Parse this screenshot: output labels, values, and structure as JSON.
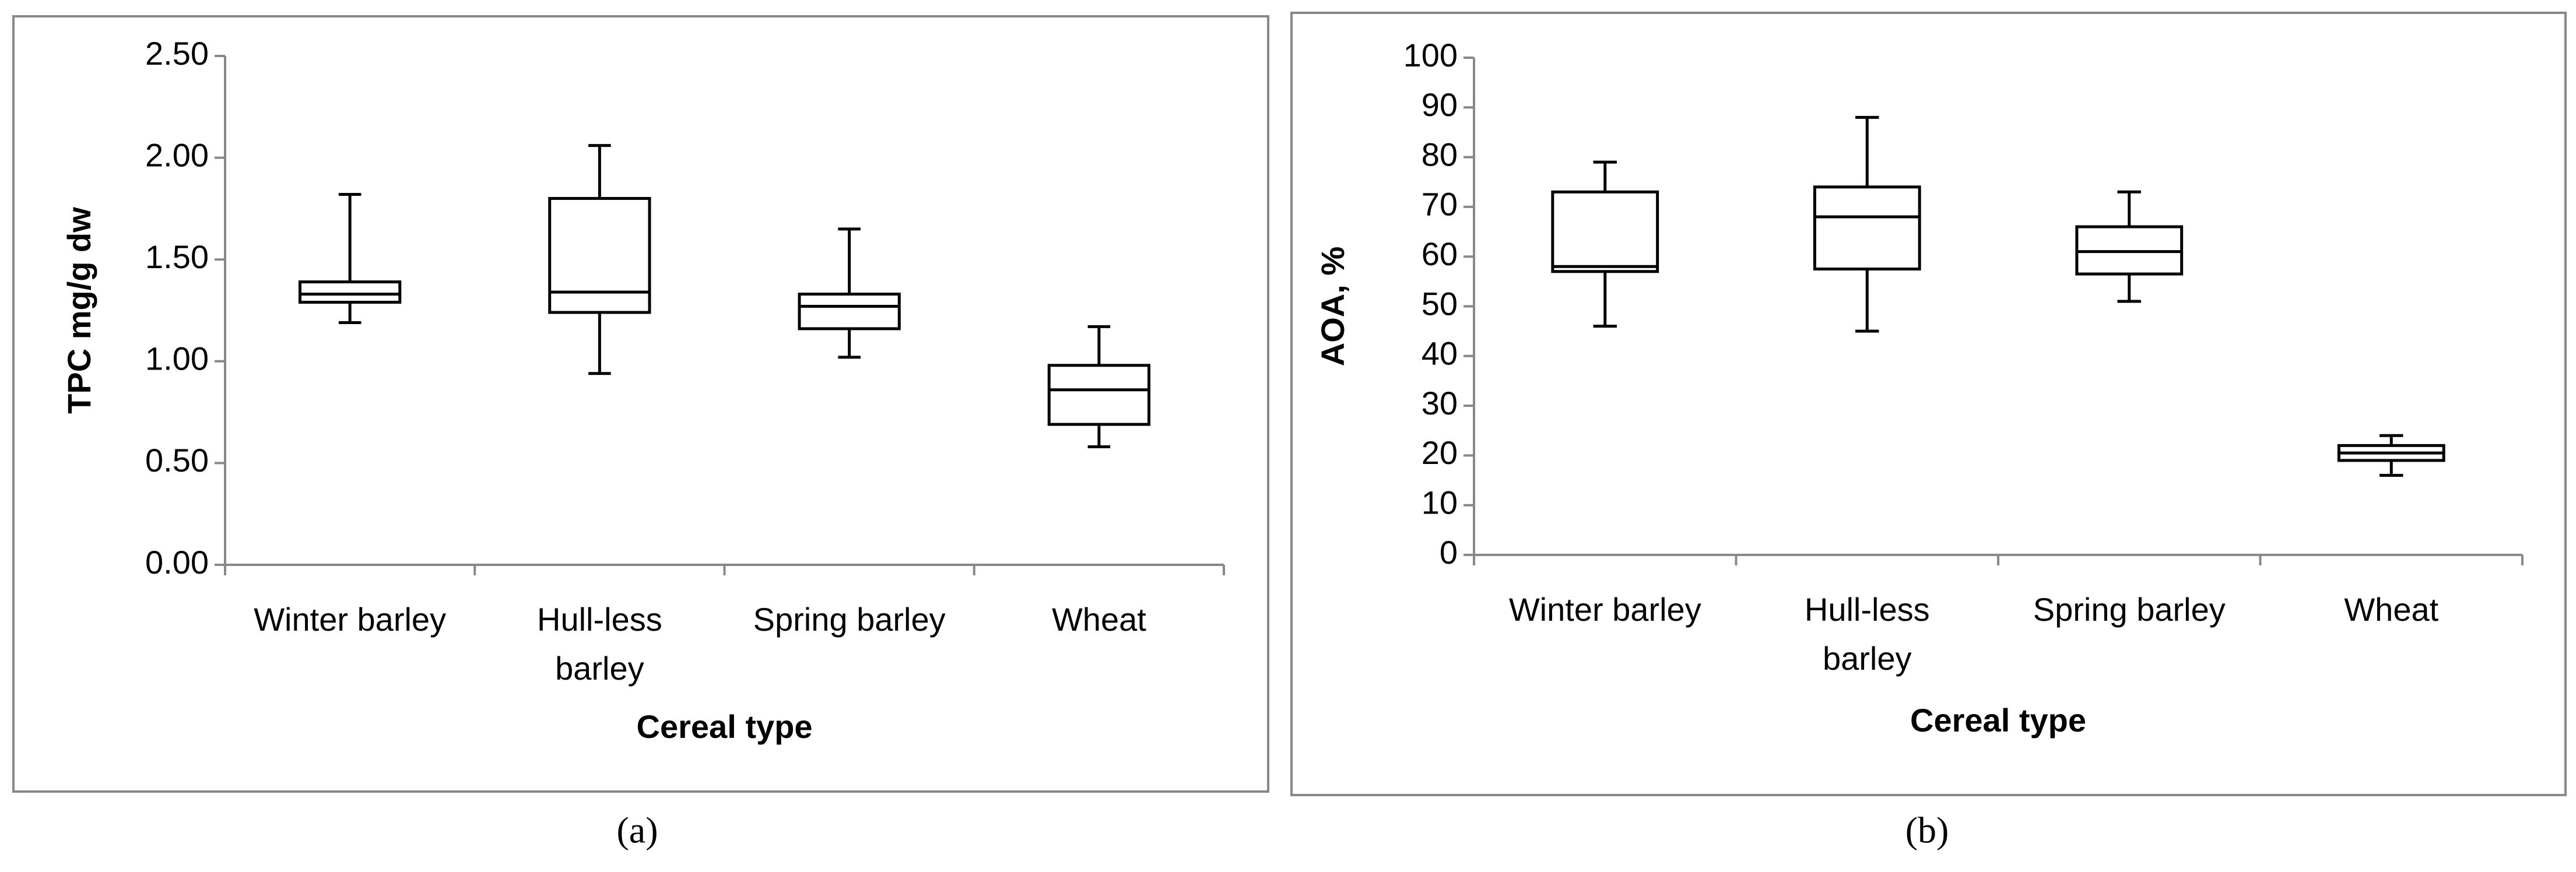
{
  "chart_data": [
    {
      "type": "box",
      "y_label": "TPC mg/g dw",
      "x_label": "Cereal type",
      "caption": "(a)",
      "categories": [
        "Winter barley",
        "Hull-less barley",
        "Spring barley",
        "Wheat"
      ],
      "boxes": [
        {
          "min": 1.19,
          "q1": 1.29,
          "median": 1.33,
          "q3": 1.39,
          "max": 1.82
        },
        {
          "min": 0.94,
          "q1": 1.24,
          "median": 1.34,
          "q3": 1.8,
          "max": 2.06
        },
        {
          "min": 1.02,
          "q1": 1.16,
          "median": 1.27,
          "q3": 1.33,
          "max": 1.65
        },
        {
          "min": 0.58,
          "q1": 0.69,
          "median": 0.86,
          "q3": 0.98,
          "max": 1.17
        }
      ],
      "color": "#000000",
      "ylim": [
        0,
        2.5
      ],
      "yticks": [
        {
          "value": 0,
          "label": "0.00"
        },
        {
          "value": 0.5,
          "label": "0.50"
        },
        {
          "value": 1,
          "label": "1.00"
        },
        {
          "value": 1.5,
          "label": "1.50"
        },
        {
          "value": 2,
          "label": "2.00"
        },
        {
          "value": 2.5,
          "label": "2.50"
        }
      ]
    },
    {
      "type": "box",
      "y_label": "AOA, %",
      "x_label": "Cereal type",
      "caption": "(b)",
      "categories": [
        "Winter barley",
        "Hull-less barley",
        "Spring barley",
        "Wheat"
      ],
      "boxes": [
        {
          "min": 46,
          "q1": 57,
          "median": 58,
          "q3": 73,
          "max": 79
        },
        {
          "min": 45,
          "q1": 57.5,
          "median": 68,
          "q3": 74,
          "max": 88
        },
        {
          "min": 51,
          "q1": 56.5,
          "median": 61,
          "q3": 66,
          "max": 73
        },
        {
          "min": 16,
          "q1": 19,
          "median": 20.5,
          "q3": 22,
          "max": 24
        }
      ],
      "color": "#000000",
      "ylim": [
        0,
        100
      ],
      "yticks": [
        0,
        10,
        20,
        30,
        40,
        50,
        60,
        70,
        80,
        90,
        100
      ]
    }
  ]
}
